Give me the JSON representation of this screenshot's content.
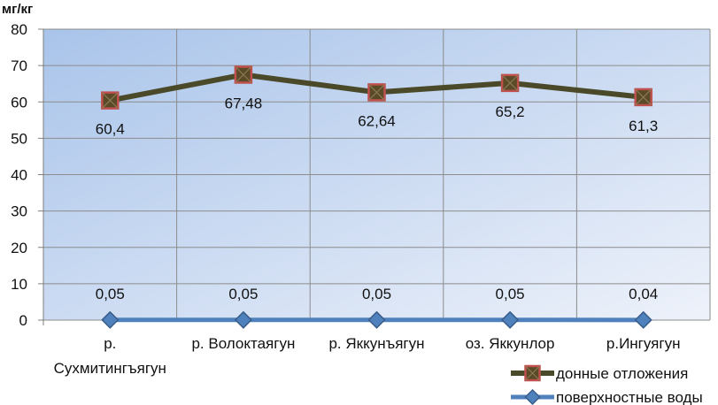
{
  "chart_data": {
    "type": "line",
    "ylabel": "мг/кг",
    "ylim": [
      0,
      80
    ],
    "yticks": [
      0,
      10,
      20,
      30,
      40,
      50,
      60,
      70,
      80
    ],
    "categories": [
      [
        "р.",
        "Сухмитингъягун"
      ],
      [
        "р. Волоктаягун"
      ],
      [
        "р. Яккунъягун"
      ],
      [
        "оз. Яккунлор"
      ],
      [
        "р.Ингуягун"
      ]
    ],
    "series": [
      {
        "name": "донные отложения",
        "values": [
          60.4,
          67.48,
          62.64,
          65.2,
          61.3
        ],
        "labels": [
          "60,4",
          "67,48",
          "62,64",
          "65,2",
          "61,3"
        ],
        "color": "#4a4a2a",
        "marker_fill": "#5a4a28",
        "marker_edge": "#c0504d",
        "marker": "square"
      },
      {
        "name": "поверхностные воды",
        "values": [
          0.05,
          0.05,
          0.05,
          0.05,
          0.04
        ],
        "labels": [
          "0,05",
          "0,05",
          "0,05",
          "0,05",
          "0,04"
        ],
        "color": "#4f81bd",
        "marker_fill": "#4f81bd",
        "marker_edge": "#385d8a",
        "marker": "diamond"
      }
    ],
    "grid": true,
    "legend_position": "bottom-right",
    "background": [
      "#a9c4ea",
      "#eef2fa"
    ]
  }
}
